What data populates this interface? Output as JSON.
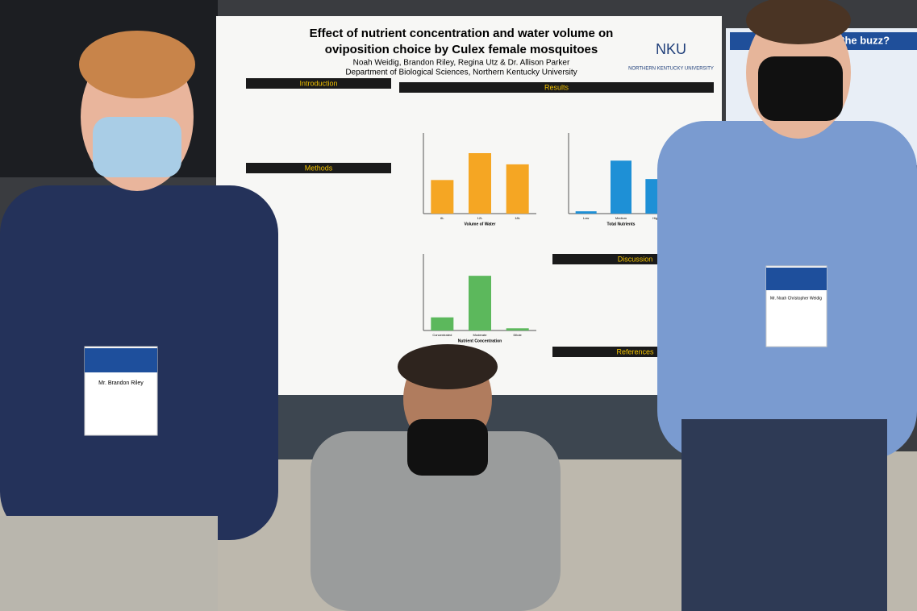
{
  "poster": {
    "title_line1": "Effect of nutrient concentration and water volume on",
    "title_line2": "oviposition choice by Culex female mosquitoes",
    "authors": "Noah Weidig, Brandon Riley, Regina Utz & Dr. Allison Parker",
    "department": "Department of Biological Sciences, Northern Kentucky University",
    "logo": "NKU",
    "university": "NORTHERN KENTUCKY UNIVERSITY",
    "sections": [
      "Introduction",
      "Methods",
      "Results",
      "Discussion",
      "References"
    ],
    "charts": [
      {
        "type": "bar",
        "xlabel": "Volume of Water",
        "categories": [
          "6L",
          "12L",
          "18L"
        ],
        "values": [
          0.75,
          1.35,
          1.1
        ],
        "ylim": [
          0,
          1.8
        ],
        "color": "#f5a623"
      },
      {
        "type": "bar",
        "xlabel": "Total Nutrients",
        "categories": [
          "Low",
          "Medium",
          "High"
        ],
        "values": [
          0.1,
          2.3,
          1.5
        ],
        "ylim": [
          0,
          3.5
        ],
        "color": "#1e90d6"
      },
      {
        "type": "bar",
        "xlabel": "Nutrient Concentration",
        "categories": [
          "Concentrated",
          "Moderate",
          "Dilute"
        ],
        "values": [
          0.6,
          2.5,
          0.1
        ],
        "ylim": [
          0,
          3.5
        ],
        "color": "#5cb85c"
      }
    ]
  },
  "badges": [
    "Mr. Brandon Riley",
    "Mr. Noah Christopher Weidig"
  ],
  "background_poster": "re's the buzz?"
}
